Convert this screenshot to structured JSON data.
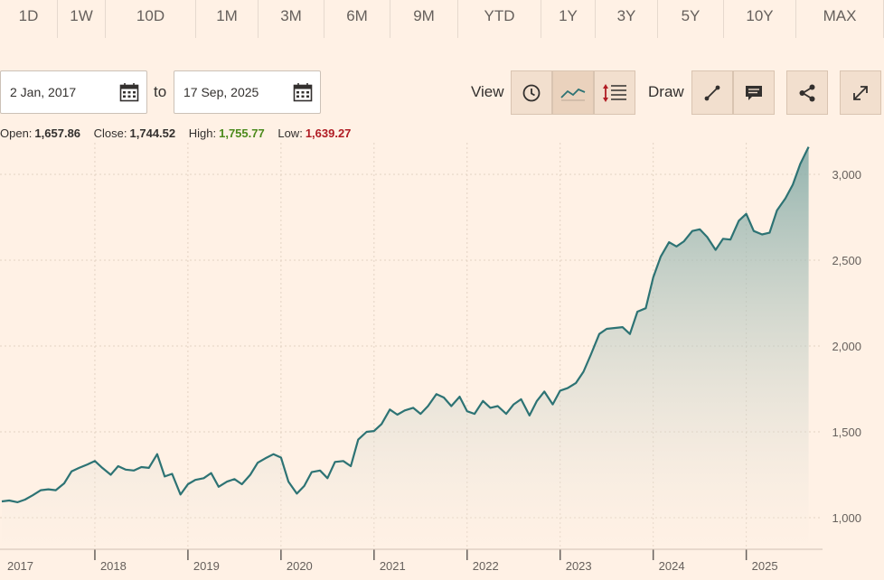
{
  "range_tabs": [
    {
      "label": "1D",
      "w": 64
    },
    {
      "label": "1W",
      "w": 53
    },
    {
      "label": "10D",
      "w": 100
    },
    {
      "label": "1M",
      "w": 69
    },
    {
      "label": "3M",
      "w": 73
    },
    {
      "label": "6M",
      "w": 73
    },
    {
      "label": "9M",
      "w": 75
    },
    {
      "label": "YTD",
      "w": 92
    },
    {
      "label": "1Y",
      "w": 60
    },
    {
      "label": "3Y",
      "w": 69
    },
    {
      "label": "5Y",
      "w": 73
    },
    {
      "label": "10Y",
      "w": 80
    },
    {
      "label": "MAX",
      "w": 97
    }
  ],
  "date_range": {
    "from": "2 Jan, 2017",
    "to_label": "to",
    "to": "17 Sep, 2025"
  },
  "toolbar": {
    "view_label": "View",
    "draw_label": "Draw",
    "icons": [
      "clock-icon",
      "line-chart-icon",
      "indicators-icon",
      "draw-line-icon",
      "comment-icon",
      "share-icon",
      "expand-icon"
    ]
  },
  "ohlc": {
    "open_label": "Open:",
    "open": "1,657.86",
    "close_label": "Close:",
    "close": "1,744.52",
    "high_label": "High:",
    "high": "1,755.77",
    "low_label": "Low:",
    "low": "1,639.27"
  },
  "colors": {
    "background": "#fff1e5",
    "line": "#2d7374",
    "high": "#4c8a1c",
    "low": "#b01c24"
  },
  "chart_data": {
    "type": "area",
    "x_tick_labels": [
      "2017",
      "2018",
      "2019",
      "2020",
      "2021",
      "2022",
      "2023",
      "2024",
      "2025"
    ],
    "y_tick_labels": [
      "1,000",
      "1,500",
      "2,000",
      "2,500",
      "3,000"
    ],
    "y_ticks": [
      1000,
      1500,
      2000,
      2500,
      3000
    ],
    "xlim": [
      2017.0,
      2025.8
    ],
    "ylim": [
      870,
      3250
    ],
    "grid": true,
    "points": [
      [
        2017.0,
        1095
      ],
      [
        2017.08,
        1100
      ],
      [
        2017.17,
        1090
      ],
      [
        2017.25,
        1105
      ],
      [
        2017.33,
        1130
      ],
      [
        2017.42,
        1160
      ],
      [
        2017.5,
        1165
      ],
      [
        2017.58,
        1160
      ],
      [
        2017.67,
        1200
      ],
      [
        2017.75,
        1270
      ],
      [
        2017.83,
        1290
      ],
      [
        2017.92,
        1310
      ],
      [
        2018.0,
        1330
      ],
      [
        2018.08,
        1290
      ],
      [
        2018.17,
        1250
      ],
      [
        2018.25,
        1300
      ],
      [
        2018.33,
        1280
      ],
      [
        2018.42,
        1275
      ],
      [
        2018.5,
        1295
      ],
      [
        2018.58,
        1290
      ],
      [
        2018.67,
        1370
      ],
      [
        2018.75,
        1240
      ],
      [
        2018.83,
        1255
      ],
      [
        2018.92,
        1135
      ],
      [
        2019.0,
        1195
      ],
      [
        2019.08,
        1220
      ],
      [
        2019.17,
        1230
      ],
      [
        2019.25,
        1260
      ],
      [
        2019.33,
        1180
      ],
      [
        2019.42,
        1210
      ],
      [
        2019.5,
        1225
      ],
      [
        2019.58,
        1195
      ],
      [
        2019.67,
        1250
      ],
      [
        2019.75,
        1320
      ],
      [
        2019.83,
        1345
      ],
      [
        2019.92,
        1370
      ],
      [
        2020.0,
        1350
      ],
      [
        2020.08,
        1210
      ],
      [
        2020.17,
        1140
      ],
      [
        2020.25,
        1185
      ],
      [
        2020.33,
        1265
      ],
      [
        2020.42,
        1275
      ],
      [
        2020.5,
        1230
      ],
      [
        2020.58,
        1325
      ],
      [
        2020.67,
        1330
      ],
      [
        2020.75,
        1300
      ],
      [
        2020.83,
        1455
      ],
      [
        2020.92,
        1500
      ],
      [
        2021.0,
        1505
      ],
      [
        2021.08,
        1545
      ],
      [
        2021.17,
        1630
      ],
      [
        2021.25,
        1600
      ],
      [
        2021.33,
        1625
      ],
      [
        2021.42,
        1640
      ],
      [
        2021.5,
        1605
      ],
      [
        2021.58,
        1650
      ],
      [
        2021.67,
        1720
      ],
      [
        2021.75,
        1700
      ],
      [
        2021.83,
        1650
      ],
      [
        2021.92,
        1705
      ],
      [
        2022.0,
        1620
      ],
      [
        2022.08,
        1605
      ],
      [
        2022.17,
        1680
      ],
      [
        2022.25,
        1640
      ],
      [
        2022.33,
        1650
      ],
      [
        2022.42,
        1605
      ],
      [
        2022.5,
        1660
      ],
      [
        2022.58,
        1690
      ],
      [
        2022.67,
        1595
      ],
      [
        2022.75,
        1680
      ],
      [
        2022.83,
        1735
      ],
      [
        2022.92,
        1660
      ],
      [
        2023.0,
        1740
      ],
      [
        2023.08,
        1755
      ],
      [
        2023.17,
        1785
      ],
      [
        2023.25,
        1850
      ],
      [
        2023.33,
        1950
      ],
      [
        2023.42,
        2070
      ],
      [
        2023.5,
        2100
      ],
      [
        2023.58,
        2105
      ],
      [
        2023.67,
        2110
      ],
      [
        2023.75,
        2070
      ],
      [
        2023.83,
        2200
      ],
      [
        2023.92,
        2220
      ],
      [
        2024.0,
        2400
      ],
      [
        2024.08,
        2520
      ],
      [
        2024.17,
        2605
      ],
      [
        2024.25,
        2580
      ],
      [
        2024.33,
        2610
      ],
      [
        2024.42,
        2670
      ],
      [
        2024.5,
        2680
      ],
      [
        2024.58,
        2635
      ],
      [
        2024.67,
        2560
      ],
      [
        2024.75,
        2625
      ],
      [
        2024.83,
        2620
      ],
      [
        2024.92,
        2730
      ],
      [
        2025.0,
        2770
      ],
      [
        2025.08,
        2670
      ],
      [
        2025.17,
        2650
      ],
      [
        2025.25,
        2660
      ],
      [
        2025.33,
        2790
      ],
      [
        2025.42,
        2860
      ],
      [
        2025.5,
        2940
      ],
      [
        2025.58,
        3060
      ],
      [
        2025.67,
        3160
      ]
    ]
  }
}
